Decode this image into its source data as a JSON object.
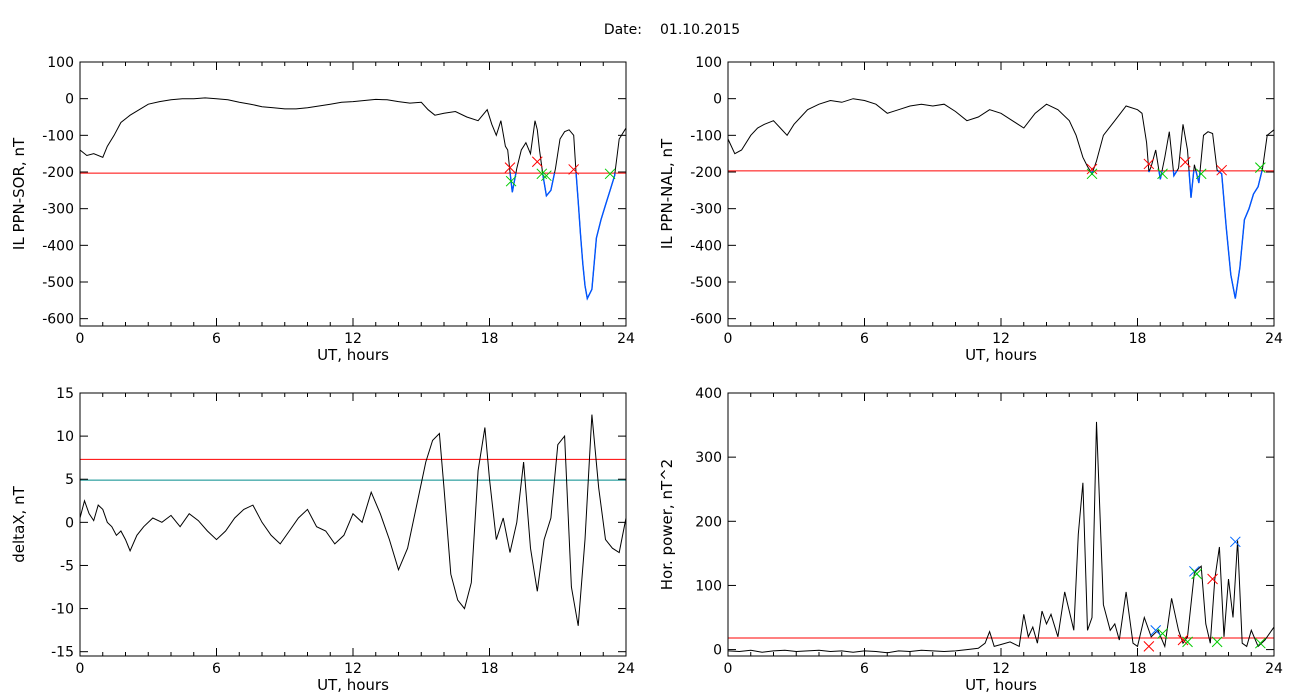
{
  "page": {
    "date_label": "Date:",
    "date_value": "01.10.2015"
  },
  "colors": {
    "axes": "#000000",
    "trace": "#000000",
    "threshold_red": "#ff0000",
    "threshold_teal": "#008b8b",
    "highlight_blue": "#0055ff",
    "marker_red": "#ff0000",
    "marker_green": "#00cc00",
    "marker_blue": "#0066ff"
  },
  "chart_data": [
    {
      "id": "ppn-sor",
      "type": "line",
      "xlabel": "UT, hours",
      "ylabel": "IL PPN-SOR, nT",
      "xlim": [
        0,
        24
      ],
      "ylim": [
        -620,
        100
      ],
      "xticks": [
        0,
        6,
        12,
        18,
        24
      ],
      "yticks": [
        100,
        0,
        -100,
        -200,
        -300,
        -400,
        -500,
        -600
      ],
      "threshold": -203,
      "highlight_below_threshold": true,
      "series": [
        {
          "x": [
            0,
            0.3,
            0.6,
            1.0,
            1.2,
            1.5,
            1.8,
            2.2,
            2.6,
            3.0,
            3.5,
            4.0,
            4.5,
            5.0,
            5.5,
            6.0,
            6.5,
            7.0,
            7.5,
            8.0,
            8.5,
            9.0,
            9.5,
            10.0,
            10.5,
            11.0,
            11.5,
            12.0,
            12.5,
            13.0,
            13.5,
            14.0,
            14.5,
            15.0,
            15.3,
            15.6,
            16.0,
            16.5,
            17.0,
            17.5,
            17.9,
            18.1,
            18.3,
            18.5,
            18.7,
            18.8,
            18.9,
            19.0,
            19.2,
            19.4,
            19.6,
            19.8,
            20.0,
            20.1,
            20.2,
            20.35,
            20.5,
            20.7,
            20.9,
            21.1,
            21.3,
            21.5,
            21.7,
            21.8,
            21.9,
            22.0,
            22.1,
            22.2,
            22.3,
            22.5,
            22.7,
            22.9,
            23.1,
            23.3,
            23.5,
            23.7,
            24.0
          ],
          "y": [
            -140,
            -155,
            -150,
            -160,
            -130,
            -100,
            -65,
            -45,
            -30,
            -15,
            -8,
            -3,
            0,
            0,
            2,
            0,
            -3,
            -10,
            -15,
            -22,
            -25,
            -28,
            -28,
            -25,
            -20,
            -15,
            -10,
            -8,
            -5,
            -2,
            -3,
            -8,
            -12,
            -10,
            -30,
            -45,
            -40,
            -35,
            -50,
            -60,
            -30,
            -70,
            -100,
            -60,
            -130,
            -140,
            -200,
            -255,
            -190,
            -140,
            -120,
            -150,
            -60,
            -85,
            -140,
            -210,
            -265,
            -250,
            -190,
            -110,
            -90,
            -85,
            -100,
            -200,
            -280,
            -370,
            -450,
            -510,
            -545,
            -520,
            -380,
            -330,
            -290,
            -250,
            -210,
            -110,
            -80
          ]
        }
      ],
      "markers": [
        {
          "x": 18.9,
          "y": -188,
          "color": "red"
        },
        {
          "x": 18.95,
          "y": -225,
          "color": "green"
        },
        {
          "x": 20.1,
          "y": -172,
          "color": "red"
        },
        {
          "x": 20.3,
          "y": -205,
          "color": "green"
        },
        {
          "x": 20.5,
          "y": -210,
          "color": "green"
        },
        {
          "x": 21.7,
          "y": -193,
          "color": "red"
        },
        {
          "x": 23.3,
          "y": -205,
          "color": "green"
        }
      ]
    },
    {
      "id": "ppn-nal",
      "type": "line",
      "xlabel": "UT, hours",
      "ylabel": "IL PPN-NAL, nT",
      "xlim": [
        0,
        24
      ],
      "ylim": [
        -620,
        100
      ],
      "xticks": [
        0,
        6,
        12,
        18,
        24
      ],
      "yticks": [
        100,
        0,
        -100,
        -200,
        -300,
        -400,
        -500,
        -600
      ],
      "threshold": -197,
      "highlight_below_threshold": true,
      "series": [
        {
          "x": [
            0,
            0.3,
            0.6,
            1.0,
            1.3,
            1.6,
            2.0,
            2.3,
            2.6,
            2.9,
            3.2,
            3.5,
            4.0,
            4.5,
            5.0,
            5.5,
            6.0,
            6.5,
            7.0,
            7.5,
            8.0,
            8.5,
            9.0,
            9.5,
            10.0,
            10.5,
            11.0,
            11.5,
            12.0,
            12.5,
            13.0,
            13.5,
            14.0,
            14.5,
            15.0,
            15.3,
            15.6,
            15.8,
            16.0,
            16.2,
            16.5,
            17.0,
            17.5,
            18.0,
            18.2,
            18.4,
            18.5,
            18.6,
            18.8,
            19.0,
            19.2,
            19.4,
            19.6,
            19.8,
            20.0,
            20.2,
            20.35,
            20.5,
            20.7,
            20.9,
            21.1,
            21.3,
            21.5,
            21.7,
            21.9,
            22.1,
            22.3,
            22.5,
            22.7,
            22.9,
            23.1,
            23.3,
            23.5,
            23.7,
            24.0
          ],
          "y": [
            -110,
            -150,
            -140,
            -100,
            -80,
            -70,
            -60,
            -80,
            -100,
            -70,
            -50,
            -30,
            -15,
            -5,
            -10,
            0,
            -5,
            -15,
            -40,
            -30,
            -20,
            -15,
            -20,
            -15,
            -35,
            -60,
            -50,
            -30,
            -40,
            -60,
            -80,
            -40,
            -15,
            -30,
            -60,
            -100,
            -160,
            -185,
            -205,
            -170,
            -100,
            -60,
            -20,
            -30,
            -40,
            -120,
            -200,
            -185,
            -140,
            -220,
            -160,
            -90,
            -210,
            -190,
            -70,
            -140,
            -270,
            -180,
            -230,
            -100,
            -90,
            -95,
            -195,
            -205,
            -350,
            -480,
            -545,
            -460,
            -330,
            -300,
            -260,
            -240,
            -190,
            -100,
            -85
          ]
        }
      ],
      "markers": [
        {
          "x": 16.0,
          "y": -192,
          "color": "red"
        },
        {
          "x": 16.0,
          "y": -205,
          "color": "green"
        },
        {
          "x": 18.5,
          "y": -178,
          "color": "red"
        },
        {
          "x": 19.1,
          "y": -205,
          "color": "green"
        },
        {
          "x": 20.1,
          "y": -173,
          "color": "red"
        },
        {
          "x": 20.8,
          "y": -205,
          "color": "green"
        },
        {
          "x": 21.7,
          "y": -195,
          "color": "red"
        },
        {
          "x": 23.4,
          "y": -188,
          "color": "green"
        }
      ]
    },
    {
      "id": "deltax",
      "type": "line",
      "xlabel": "UT, hours",
      "ylabel": "deltaX, nT",
      "xlim": [
        0,
        24
      ],
      "ylim": [
        -15.5,
        15
      ],
      "xticks": [
        0,
        6,
        12,
        18,
        24
      ],
      "yticks": [
        15,
        10,
        5,
        0,
        -5,
        -10,
        -15
      ],
      "thresholds": [
        {
          "value": 7.3,
          "color": "red"
        },
        {
          "value": 4.9,
          "color": "teal"
        }
      ],
      "series": [
        {
          "x": [
            0,
            0.2,
            0.4,
            0.6,
            0.8,
            1.0,
            1.2,
            1.4,
            1.6,
            1.8,
            2.0,
            2.2,
            2.5,
            2.8,
            3.2,
            3.6,
            4.0,
            4.4,
            4.8,
            5.2,
            5.6,
            6.0,
            6.4,
            6.8,
            7.2,
            7.6,
            8.0,
            8.4,
            8.8,
            9.2,
            9.6,
            10.0,
            10.4,
            10.8,
            11.2,
            11.6,
            12.0,
            12.4,
            12.8,
            13.2,
            13.6,
            14.0,
            14.4,
            14.8,
            15.2,
            15.5,
            15.8,
            16.0,
            16.3,
            16.6,
            16.9,
            17.2,
            17.5,
            17.8,
            18.0,
            18.3,
            18.6,
            18.9,
            19.2,
            19.5,
            19.8,
            20.1,
            20.4,
            20.7,
            21.0,
            21.3,
            21.6,
            21.9,
            22.2,
            22.5,
            22.8,
            23.1,
            23.4,
            23.7,
            24.0
          ],
          "y": [
            0.5,
            2.5,
            1.0,
            0.2,
            2.0,
            1.5,
            0.0,
            -0.5,
            -1.5,
            -1.0,
            -2.0,
            -3.3,
            -1.5,
            -0.5,
            0.5,
            0.0,
            0.8,
            -0.5,
            1.0,
            0.2,
            -1.0,
            -2.0,
            -1.0,
            0.5,
            1.5,
            2.0,
            0.0,
            -1.5,
            -2.5,
            -1.0,
            0.5,
            1.5,
            -0.5,
            -1.0,
            -2.5,
            -1.5,
            1.0,
            0.0,
            3.5,
            1.0,
            -2.0,
            -5.5,
            -3.0,
            2.0,
            7.0,
            9.5,
            10.3,
            4.0,
            -6.0,
            -9.0,
            -10.0,
            -7.0,
            6.0,
            11.0,
            5.0,
            -2.0,
            0.5,
            -3.5,
            0.0,
            7.0,
            -3.0,
            -8.0,
            -2.0,
            0.5,
            9.0,
            10.0,
            -7.5,
            -12.0,
            -2.0,
            12.5,
            4.0,
            -2.0,
            -3.0,
            -3.5,
            0.5
          ]
        }
      ],
      "markers": []
    },
    {
      "id": "hor-power",
      "type": "line",
      "xlabel": "UT, hours",
      "ylabel": "Hor. power, nT^2",
      "xlim": [
        0,
        24
      ],
      "ylim": [
        -10,
        400
      ],
      "xticks": [
        0,
        6,
        12,
        18,
        24
      ],
      "yticks": [
        400,
        300,
        200,
        100,
        0
      ],
      "threshold": 18,
      "series": [
        {
          "x": [
            0,
            0.5,
            1.0,
            1.5,
            2.0,
            2.5,
            3.0,
            3.5,
            4.0,
            4.5,
            5.0,
            5.5,
            6.0,
            6.5,
            7.0,
            7.5,
            8.0,
            8.5,
            9.0,
            9.5,
            10.0,
            10.5,
            11.0,
            11.3,
            11.5,
            11.7,
            12.0,
            12.4,
            12.8,
            13.0,
            13.2,
            13.4,
            13.6,
            13.8,
            14.0,
            14.2,
            14.5,
            14.8,
            15.0,
            15.2,
            15.4,
            15.6,
            15.8,
            16.0,
            16.2,
            16.5,
            16.8,
            17.0,
            17.2,
            17.5,
            17.8,
            18.0,
            18.3,
            18.6,
            18.9,
            19.2,
            19.5,
            19.8,
            20.0,
            20.2,
            20.5,
            20.8,
            21.0,
            21.2,
            21.4,
            21.6,
            21.8,
            22.0,
            22.2,
            22.4,
            22.6,
            22.8,
            23.0,
            23.3,
            23.6,
            24.0
          ],
          "y": [
            -2,
            -3,
            -1,
            -4,
            -2,
            -1,
            -3,
            -2,
            -1,
            -3,
            -2,
            -4,
            -2,
            -3,
            -5,
            -2,
            -3,
            -1,
            -2,
            -3,
            -2,
            0,
            2,
            10,
            28,
            5,
            8,
            12,
            5,
            55,
            20,
            35,
            10,
            60,
            40,
            55,
            20,
            90,
            60,
            30,
            180,
            260,
            30,
            50,
            355,
            70,
            30,
            40,
            15,
            90,
            10,
            5,
            50,
            20,
            30,
            5,
            80,
            30,
            10,
            20,
            120,
            130,
            40,
            10,
            110,
            160,
            20,
            110,
            50,
            170,
            10,
            5,
            30,
            5,
            15,
            35
          ]
        }
      ],
      "markers": [
        {
          "x": 18.5,
          "y": 5,
          "color": "red"
        },
        {
          "x": 18.8,
          "y": 30,
          "color": "blue"
        },
        {
          "x": 19.1,
          "y": 25,
          "color": "green"
        },
        {
          "x": 20.0,
          "y": 15,
          "color": "red"
        },
        {
          "x": 20.2,
          "y": 12,
          "color": "green"
        },
        {
          "x": 20.5,
          "y": 122,
          "color": "blue"
        },
        {
          "x": 20.6,
          "y": 118,
          "color": "green"
        },
        {
          "x": 21.3,
          "y": 110,
          "color": "red"
        },
        {
          "x": 21.5,
          "y": 12,
          "color": "green"
        },
        {
          "x": 22.3,
          "y": 168,
          "color": "blue"
        },
        {
          "x": 23.4,
          "y": 10,
          "color": "green"
        }
      ]
    }
  ]
}
